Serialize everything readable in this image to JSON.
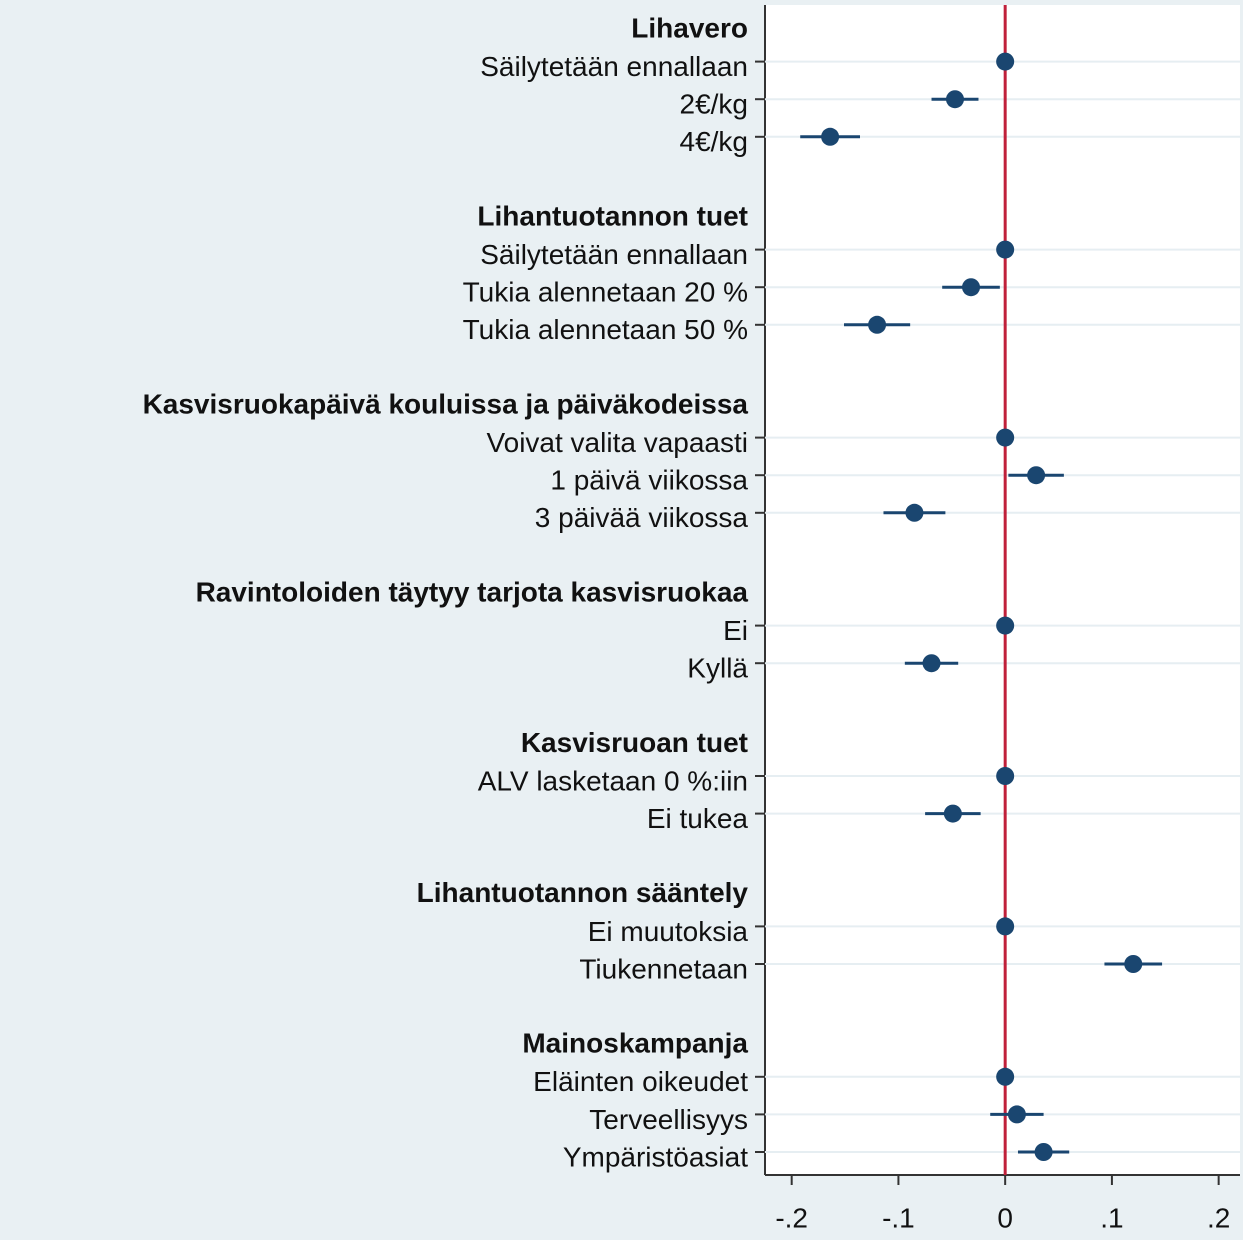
{
  "chart_data": {
    "type": "coefplot",
    "color": "#1a4670",
    "xlim": [
      -0.225,
      0.22
    ],
    "xticks": [
      {
        "value": -0.2,
        "label": "-.2"
      },
      {
        "value": -0.1,
        "label": "-.1"
      },
      0,
      {
        "value": 0.1,
        "label": ".1"
      },
      {
        "value": 0.2,
        "label": ".2"
      }
    ],
    "grid": true,
    "reference_line": {
      "value": 0,
      "color": "#c0203a"
    },
    "groups": [
      {
        "name": "Lihavero",
        "categories": [
          "Säilytetään ennallaan",
          "2€/kg",
          "4€/kg"
        ],
        "values": [
          0,
          -0.047,
          -0.164
        ],
        "errors": [
          0,
          0.022,
          0.028
        ]
      },
      {
        "name": "Lihantuotannon tuet",
        "categories": [
          "Säilytetään ennallaan",
          "Tukia alennetaan 20 %",
          "Tukia alennetaan 50 %"
        ],
        "values": [
          0,
          -0.032,
          -0.12
        ],
        "errors": [
          0,
          0.027,
          0.031
        ]
      },
      {
        "name": "Kasvisruokapäivä kouluissa ja päiväkodeissa",
        "categories": [
          "Voivat valita vapaasti",
          "1 päivä viikossa",
          "3 päivää viikossa"
        ],
        "values": [
          0,
          0.029,
          -0.085
        ],
        "errors": [
          0,
          0.026,
          0.029
        ]
      },
      {
        "name": "Ravintoloiden täytyy tarjota kasvisruokaa",
        "categories": [
          "Ei",
          "Kyllä"
        ],
        "values": [
          0,
          -0.069
        ],
        "errors": [
          0,
          0.025
        ]
      },
      {
        "name": "Kasvisruoan tuet",
        "categories": [
          "ALV lasketaan 0 %:iin",
          "Ei tukea"
        ],
        "values": [
          0,
          -0.049
        ],
        "errors": [
          0,
          0.026
        ]
      },
      {
        "name": "Lihantuotannon sääntely",
        "categories": [
          "Ei muutoksia",
          "Tiukennetaan"
        ],
        "values": [
          0,
          0.12
        ],
        "errors": [
          0,
          0.027
        ]
      },
      {
        "name": "Mainoskampanja",
        "categories": [
          "Eläinten oikeudet",
          "Terveellisyys",
          "Ympäristöasiat"
        ],
        "values": [
          0,
          0.011,
          0.036
        ],
        "errors": [
          0,
          0.025,
          0.024
        ]
      }
    ]
  }
}
